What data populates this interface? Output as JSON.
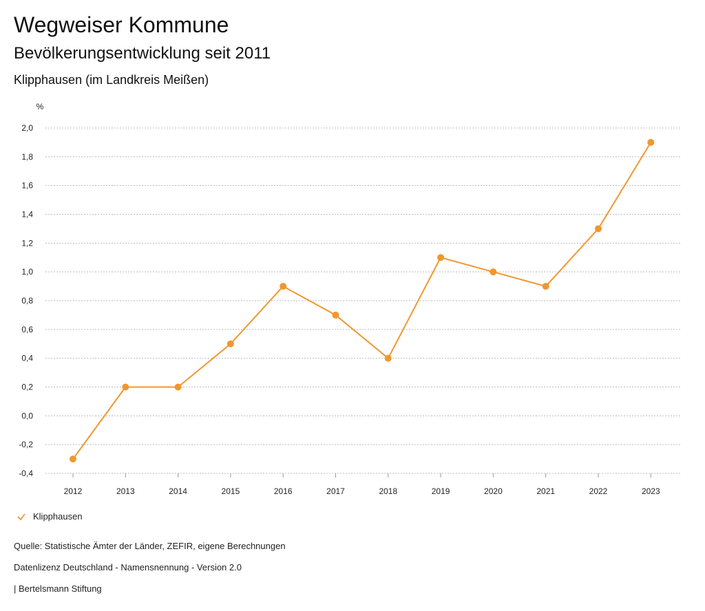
{
  "header": {
    "title": "Wegweiser Kommune",
    "subtitle": "Bevölkerungsentwicklung seit 2011",
    "place": "Klipphausen (im Landkreis Meißen)"
  },
  "legend": {
    "label": "Klipphausen"
  },
  "footer": {
    "source": "Quelle: Statistische Ämter der Länder, ZEFIR, eigene Berechnungen",
    "license": "Datenlizenz Deutschland - Namensnennung - Version 2.0",
    "organization": "| Bertelsmann Stiftung"
  },
  "colors": {
    "series": "#F0972F",
    "grid": "#bbbbbb"
  },
  "chart_data": {
    "type": "line",
    "title": "Bevölkerungsentwicklung seit 2011",
    "ylabel": "%",
    "xlabel": "",
    "ylim": [
      -0.4,
      2.0
    ],
    "y_ticks": [
      "2,0",
      "1,8",
      "1,6",
      "1,4",
      "1,2",
      "1,0",
      "0,8",
      "0,6",
      "0,4",
      "0,2",
      "0,0",
      "-0,2",
      "-0,4"
    ],
    "y_tick_values": [
      2.0,
      1.8,
      1.6,
      1.4,
      1.2,
      1.0,
      0.8,
      0.6,
      0.4,
      0.2,
      0.0,
      -0.2,
      -0.4
    ],
    "categories": [
      "2012",
      "2013",
      "2014",
      "2015",
      "2016",
      "2017",
      "2018",
      "2019",
      "2020",
      "2021",
      "2022",
      "2023"
    ],
    "series": [
      {
        "name": "Klipphausen",
        "values": [
          -0.3,
          0.2,
          0.2,
          0.5,
          0.9,
          0.7,
          0.4,
          1.1,
          1.0,
          0.9,
          1.3,
          1.9
        ]
      }
    ],
    "grid": true,
    "legend_position": "bottom-left"
  }
}
